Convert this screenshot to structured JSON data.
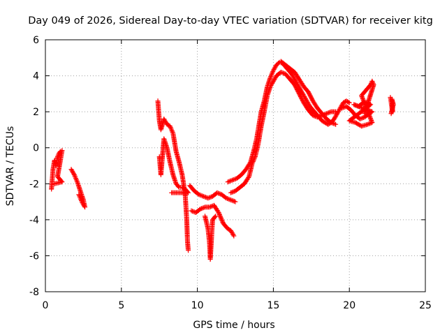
{
  "chart_data": {
    "type": "scatter",
    "title": "Day 049 of 2026, Sidereal Day-to-day VTEC variation (SDTVAR) for receiver kitg",
    "xlabel": "GPS time / hours",
    "ylabel": "SDTVAR / TECUs",
    "xlim": [
      0,
      25
    ],
    "ylim": [
      -8,
      6
    ],
    "xticks": [
      "0",
      "5",
      "10",
      "15",
      "20",
      "25"
    ],
    "yticks": [
      "-8",
      "-6",
      "-4",
      "-2",
      "0",
      "2",
      "4",
      "6"
    ],
    "grid": true,
    "marker": "+",
    "marker_color": "#ff0000",
    "series": [
      {
        "points": [
          [
            0.4,
            -2.3
          ],
          [
            0.5,
            -1.2
          ],
          [
            0.6,
            -0.7
          ],
          [
            0.7,
            -1.0
          ],
          [
            0.8,
            -0.5
          ],
          [
            0.9,
            -0.3
          ],
          [
            1.0,
            -0.2
          ],
          [
            1.1,
            -0.15
          ],
          [
            0.8,
            -1.6
          ],
          [
            1.0,
            -1.8
          ],
          [
            1.1,
            -1.9
          ],
          [
            0.6,
            -2.0
          ]
        ]
      },
      {
        "points": [
          [
            1.7,
            -1.2
          ],
          [
            1.9,
            -1.5
          ],
          [
            2.1,
            -1.9
          ],
          [
            2.3,
            -2.4
          ],
          [
            2.5,
            -2.9
          ],
          [
            2.6,
            -3.3
          ],
          [
            2.4,
            -3.0
          ],
          [
            2.2,
            -2.6
          ]
        ]
      },
      {
        "points": [
          [
            7.4,
            2.6
          ],
          [
            7.5,
            1.5
          ],
          [
            7.6,
            1.0
          ],
          [
            7.8,
            1.6
          ],
          [
            8.0,
            1.3
          ],
          [
            8.2,
            1.2
          ],
          [
            8.4,
            0.8
          ],
          [
            8.6,
            -0.2
          ],
          [
            8.8,
            -0.8
          ],
          [
            9.0,
            -1.5
          ],
          [
            9.2,
            -2.6
          ],
          [
            9.3,
            -4.0
          ],
          [
            9.35,
            -5.2
          ],
          [
            9.4,
            -5.7
          ]
        ]
      },
      {
        "points": [
          [
            7.5,
            -0.5
          ],
          [
            7.6,
            -1.5
          ],
          [
            7.8,
            0.5
          ],
          [
            8.0,
            0.0
          ],
          [
            8.2,
            -0.8
          ],
          [
            8.4,
            -1.5
          ],
          [
            8.6,
            -2.0
          ],
          [
            8.8,
            -2.2
          ],
          [
            9.0,
            -2.2
          ],
          [
            9.2,
            -2.3
          ],
          [
            9.4,
            -2.5
          ],
          [
            8.3,
            -2.5
          ]
        ]
      },
      {
        "points": [
          [
            9.5,
            -2.1
          ],
          [
            9.8,
            -2.4
          ],
          [
            10.1,
            -2.6
          ],
          [
            10.4,
            -2.7
          ],
          [
            10.7,
            -2.8
          ],
          [
            11.0,
            -2.7
          ],
          [
            11.3,
            -2.5
          ],
          [
            11.6,
            -2.6
          ],
          [
            11.9,
            -2.8
          ],
          [
            12.2,
            -2.9
          ],
          [
            12.5,
            -3.0
          ]
        ]
      },
      {
        "points": [
          [
            9.6,
            -3.5
          ],
          [
            9.9,
            -3.6
          ],
          [
            10.2,
            -3.4
          ],
          [
            10.5,
            -3.3
          ],
          [
            10.8,
            -3.3
          ],
          [
            11.1,
            -3.2
          ],
          [
            11.4,
            -3.6
          ],
          [
            11.7,
            -4.2
          ],
          [
            12.0,
            -4.5
          ],
          [
            12.2,
            -4.6
          ],
          [
            12.4,
            -4.9
          ]
        ]
      },
      {
        "points": [
          [
            10.5,
            -3.8
          ],
          [
            10.7,
            -4.5
          ],
          [
            10.8,
            -5.3
          ],
          [
            10.85,
            -6.2
          ],
          [
            11.0,
            -4.0
          ],
          [
            11.2,
            -3.8
          ]
        ]
      },
      {
        "points": [
          [
            12.0,
            -1.9
          ],
          [
            12.3,
            -1.8
          ],
          [
            12.6,
            -1.7
          ],
          [
            12.9,
            -1.5
          ],
          [
            13.2,
            -1.2
          ],
          [
            13.5,
            -0.8
          ],
          [
            13.7,
            -0.2
          ],
          [
            13.9,
            0.5
          ],
          [
            14.0,
            1.0
          ],
          [
            14.2,
            2.0
          ],
          [
            14.4,
            2.6
          ],
          [
            14.6,
            3.4
          ],
          [
            14.8,
            3.9
          ],
          [
            15.0,
            4.3
          ],
          [
            15.2,
            4.6
          ],
          [
            15.4,
            4.75
          ],
          [
            15.6,
            4.7
          ],
          [
            15.8,
            4.5
          ],
          [
            16.0,
            4.3
          ],
          [
            16.2,
            4.1
          ],
          [
            16.4,
            3.8
          ],
          [
            16.6,
            3.5
          ],
          [
            16.8,
            3.2
          ],
          [
            17.0,
            2.9
          ],
          [
            17.2,
            2.6
          ],
          [
            17.4,
            2.3
          ],
          [
            17.6,
            2.1
          ],
          [
            17.8,
            1.9
          ],
          [
            18.0,
            1.7
          ],
          [
            18.2,
            1.5
          ],
          [
            18.4,
            1.4
          ],
          [
            18.6,
            1.3
          ],
          [
            18.8,
            1.4
          ],
          [
            19.0,
            1.6
          ],
          [
            19.2,
            1.9
          ],
          [
            19.4,
            2.2
          ],
          [
            19.6,
            2.5
          ],
          [
            19.8,
            2.6
          ],
          [
            20.0,
            2.5
          ]
        ]
      },
      {
        "points": [
          [
            12.2,
            -2.5
          ],
          [
            12.5,
            -2.4
          ],
          [
            12.8,
            -2.2
          ],
          [
            13.1,
            -2.0
          ],
          [
            13.4,
            -1.6
          ],
          [
            13.6,
            -0.9
          ],
          [
            13.8,
            -0.5
          ],
          [
            14.0,
            0.2
          ],
          [
            14.2,
            1.2
          ],
          [
            14.4,
            2.0
          ],
          [
            14.6,
            2.9
          ],
          [
            14.8,
            3.4
          ],
          [
            15.0,
            3.7
          ],
          [
            15.2,
            4.0
          ],
          [
            15.5,
            4.2
          ],
          [
            15.8,
            4.1
          ],
          [
            16.1,
            3.8
          ],
          [
            16.4,
            3.5
          ],
          [
            16.7,
            3.0
          ],
          [
            17.0,
            2.5
          ],
          [
            17.3,
            2.1
          ],
          [
            17.6,
            1.8
          ],
          [
            17.9,
            1.7
          ],
          [
            18.2,
            1.8
          ],
          [
            18.5,
            1.9
          ],
          [
            18.8,
            2.0
          ],
          [
            19.1,
            2.0
          ]
        ]
      },
      {
        "points": [
          [
            15.5,
            4.8
          ],
          [
            15.8,
            4.6
          ],
          [
            16.1,
            4.4
          ],
          [
            16.4,
            4.2
          ],
          [
            16.7,
            3.8
          ],
          [
            17.0,
            3.4
          ],
          [
            17.3,
            3.1
          ],
          [
            17.6,
            2.6
          ],
          [
            17.9,
            2.2
          ],
          [
            18.2,
            1.9
          ],
          [
            18.5,
            1.6
          ],
          [
            18.8,
            1.4
          ],
          [
            19.1,
            1.3
          ]
        ]
      },
      {
        "points": [
          [
            19.5,
            2.2
          ],
          [
            19.8,
            2.3
          ],
          [
            20.1,
            2.1
          ],
          [
            20.4,
            1.8
          ],
          [
            20.7,
            1.6
          ],
          [
            21.0,
            1.7
          ],
          [
            21.3,
            1.9
          ],
          [
            21.5,
            2.0
          ],
          [
            20.3,
            2.4
          ],
          [
            20.6,
            2.3
          ],
          [
            20.9,
            2.5
          ],
          [
            21.2,
            2.5
          ],
          [
            21.4,
            2.4
          ],
          [
            20.0,
            1.5
          ],
          [
            20.4,
            1.4
          ],
          [
            20.8,
            1.2
          ],
          [
            21.2,
            1.3
          ],
          [
            21.5,
            1.4
          ],
          [
            20.8,
            2.9
          ],
          [
            21.0,
            3.1
          ],
          [
            21.2,
            3.3
          ],
          [
            21.4,
            3.5
          ],
          [
            21.5,
            3.7
          ],
          [
            21.6,
            3.5
          ],
          [
            21.0,
            1.9
          ]
        ]
      },
      {
        "points": [
          [
            22.7,
            2.8
          ],
          [
            22.75,
            2.5
          ],
          [
            22.8,
            2.2
          ],
          [
            22.85,
            2.0
          ],
          [
            22.8,
            2.7
          ],
          [
            22.9,
            2.4
          ],
          [
            22.75,
            1.9
          ]
        ]
      }
    ]
  }
}
